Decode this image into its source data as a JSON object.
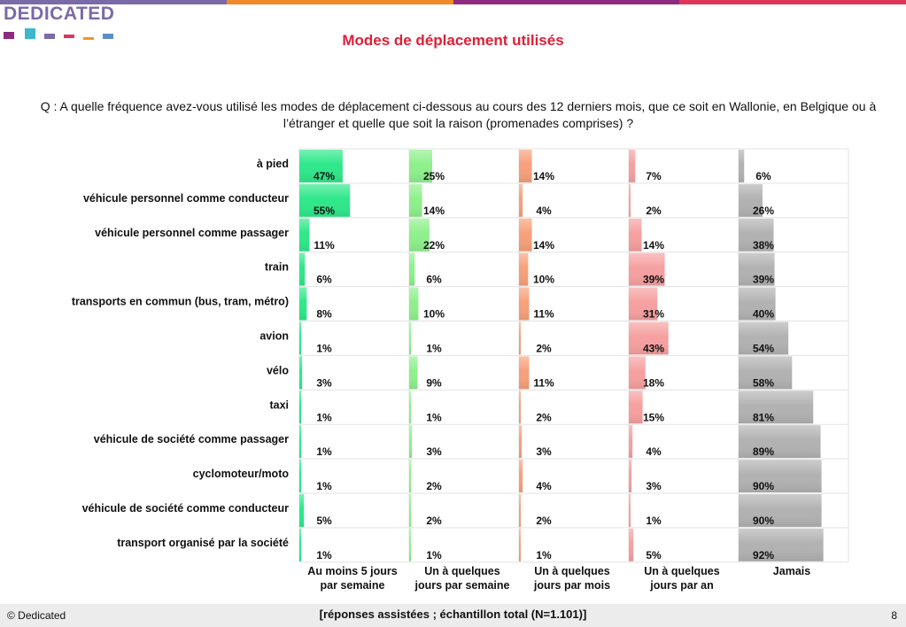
{
  "header": {
    "logo_text": "DEDICATED",
    "logo_colors": [
      "#8e2a7f",
      "#3db7c9",
      "#7b6aa8",
      "#e0365a",
      "#f0962a",
      "#5b8fc9"
    ],
    "topbar_colors": [
      "#7b6aa8",
      "#f08a2a",
      "#8e2a7f",
      "#e0365a"
    ],
    "title": "Modes de déplacement utilisés",
    "question": "Q : A quelle fréquence avez-vous utilisé les modes de déplacement ci-dessous au cours des 12 derniers mois, que ce soit en Wallonie, en Belgique ou à l’étranger et quelle que soit la raison (promenades comprises) ?"
  },
  "chart_data": {
    "type": "bar",
    "orientation": "horizontal-panels",
    "unit": "%",
    "categories": [
      "à pied",
      "véhicule personnel comme conducteur",
      "véhicule personnel comme passager",
      "train",
      "transports en commun (bus, tram, métro)",
      "avion",
      "vélo",
      "taxi",
      "véhicule de société comme passager",
      "cyclomoteur/moto",
      "véhicule de société comme conducteur",
      "transport organisé par la société"
    ],
    "series": [
      {
        "name": "Au moins 5 jours par semaine",
        "color": "#2ee88a",
        "values": [
          47,
          55,
          11,
          6,
          8,
          1,
          3,
          1,
          1,
          1,
          5,
          1
        ]
      },
      {
        "name": "Un à quelques jours par semaine",
        "color": "#8ef08c",
        "values": [
          25,
          14,
          22,
          6,
          10,
          1,
          9,
          1,
          3,
          2,
          2,
          1
        ]
      },
      {
        "name": "Un à quelques jours par mois",
        "color": "#f7a07a",
        "values": [
          14,
          4,
          14,
          10,
          11,
          2,
          11,
          2,
          3,
          4,
          2,
          1
        ]
      },
      {
        "name": "Un à quelques jours par an",
        "color": "#f6a0a0",
        "values": [
          7,
          2,
          14,
          39,
          31,
          43,
          18,
          15,
          4,
          3,
          1,
          5
        ]
      },
      {
        "name": "Jamais",
        "color": "#b2b2b2",
        "values": [
          6,
          26,
          38,
          39,
          40,
          54,
          58,
          81,
          89,
          90,
          90,
          92
        ]
      }
    ],
    "column_labels": [
      [
        "Au moins 5 jours",
        "par semaine"
      ],
      [
        "Un à quelques",
        "jours par semaine"
      ],
      [
        "Un à quelques",
        "jours par mois"
      ],
      [
        "Un à quelques",
        "jours par an"
      ],
      [
        "Jamais"
      ]
    ],
    "xlim": [
      0,
      100
    ],
    "grid": true
  },
  "footer": {
    "copyright": "© Dedicated",
    "note": "[réponses assistées ; échantillon total (N=1.101)]",
    "page": "8"
  }
}
